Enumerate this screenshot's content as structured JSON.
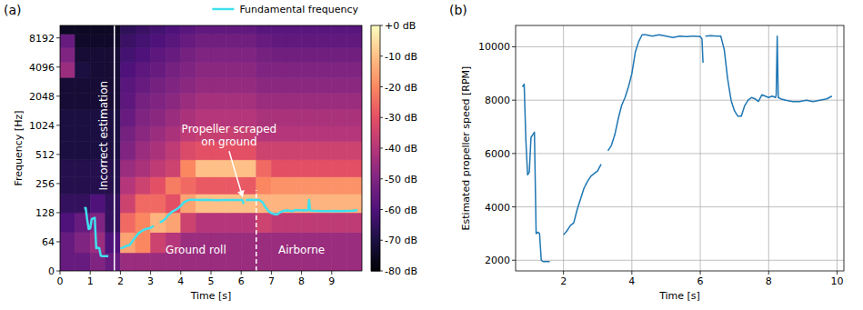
{
  "chart_data": [
    {
      "type": "heatmap",
      "panel_label": "(a)",
      "x_label": "Time [s]",
      "y_label": "Frequency [Hz]",
      "xlim": [
        0,
        10
      ],
      "xticks": [
        0,
        1,
        2,
        3,
        4,
        5,
        6,
        7,
        8,
        9
      ],
      "ylim": [
        0,
        11025
      ],
      "yticks": [
        0,
        64,
        128,
        256,
        512,
        1024,
        2048,
        4096,
        8192
      ],
      "log": "y",
      "grid": false,
      "legend": "top",
      "time_edges": [
        0,
        0.5,
        1,
        1.5,
        2,
        2.5,
        3,
        3.5,
        4,
        4.5,
        5,
        5.5,
        6,
        6.5,
        7,
        7.5,
        8,
        8.5,
        9,
        9.5,
        10
      ],
      "freq_edges": [
        0,
        40,
        80,
        128,
        200,
        300,
        450,
        700,
        1000,
        1500,
        2200,
        3200,
        4600,
        6500,
        9000,
        11025
      ],
      "cells": [
        [
          -55,
          -55,
          -50,
          -55,
          -45,
          -45,
          -45,
          -45,
          -45,
          -45,
          -45,
          -45,
          -45,
          -45,
          -45,
          -45,
          -45,
          -45,
          -45,
          -45
        ],
        [
          -55,
          -50,
          -45,
          -60,
          -15,
          -20,
          -35,
          -40,
          -45,
          -45,
          -45,
          -45,
          -45,
          -45,
          -45,
          -45,
          -45,
          -45,
          -45,
          -45
        ],
        [
          -60,
          -55,
          -50,
          -65,
          -25,
          -20,
          -12,
          -15,
          -35,
          -40,
          -40,
          -40,
          -40,
          -35,
          -38,
          -38,
          -38,
          -38,
          -38,
          -38
        ],
        [
          -65,
          -65,
          -60,
          -65,
          -35,
          -25,
          -25,
          -30,
          -15,
          -10,
          -10,
          -10,
          -10,
          -12,
          -12,
          -12,
          -12,
          -12,
          -12,
          -12
        ],
        [
          -68,
          -68,
          -68,
          -68,
          -40,
          -35,
          -30,
          -22,
          -25,
          -28,
          -28,
          -28,
          -28,
          -20,
          -18,
          -18,
          -18,
          -18,
          -18,
          -18
        ],
        [
          -68,
          -68,
          -68,
          -68,
          -45,
          -42,
          -38,
          -35,
          -20,
          -10,
          -10,
          -10,
          -10,
          -25,
          -30,
          -30,
          -30,
          -30,
          -30,
          -30
        ],
        [
          -70,
          -70,
          -70,
          -70,
          -50,
          -45,
          -42,
          -38,
          -32,
          -30,
          -30,
          -30,
          -30,
          -35,
          -35,
          -35,
          -35,
          -35,
          -35,
          -35
        ],
        [
          -70,
          -70,
          -70,
          -70,
          -52,
          -48,
          -45,
          -42,
          -38,
          -36,
          -36,
          -36,
          -36,
          -40,
          -40,
          -40,
          -40,
          -40,
          -40,
          -40
        ],
        [
          -70,
          -70,
          -70,
          -70,
          -55,
          -50,
          -48,
          -45,
          -42,
          -40,
          -40,
          -40,
          -40,
          -42,
          -42,
          -42,
          -42,
          -42,
          -42,
          -42
        ],
        [
          -72,
          -72,
          -72,
          -72,
          -57,
          -52,
          -50,
          -48,
          -45,
          -43,
          -43,
          -43,
          -43,
          -45,
          -45,
          -45,
          -45,
          -45,
          -45,
          -45
        ],
        [
          -72,
          -72,
          -72,
          -72,
          -58,
          -55,
          -52,
          -50,
          -48,
          -46,
          -46,
          -46,
          -46,
          -48,
          -48,
          -48,
          -48,
          -48,
          -48,
          -48
        ],
        [
          -45,
          -70,
          -72,
          -72,
          -60,
          -57,
          -55,
          -52,
          -50,
          -48,
          -48,
          -48,
          -48,
          -50,
          -50,
          -50,
          -50,
          -50,
          -50,
          -50
        ],
        [
          -50,
          -72,
          -72,
          -72,
          -62,
          -60,
          -57,
          -55,
          -52,
          -50,
          -50,
          -50,
          -50,
          -52,
          -53,
          -53,
          -53,
          -53,
          -53,
          -53
        ],
        [
          -55,
          -74,
          -74,
          -74,
          -64,
          -62,
          -60,
          -58,
          -55,
          -53,
          -53,
          -53,
          -53,
          -55,
          -56,
          -56,
          -56,
          -56,
          -56,
          -56
        ],
        [
          -75,
          -75,
          -75,
          -75,
          -66,
          -64,
          -62,
          -60,
          -58,
          -56,
          -56,
          -56,
          -56,
          -58,
          -58,
          -58,
          -58,
          -58,
          -58,
          -58
        ]
      ],
      "colorbar": {
        "range": [
          -80,
          0
        ],
        "ticks": [
          {
            "value": -80,
            "label": "-80 dB"
          },
          {
            "value": -70,
            "label": "-70 dB"
          },
          {
            "value": -60,
            "label": "-60 dB"
          },
          {
            "value": -50,
            "label": "-50 dB"
          },
          {
            "value": -40,
            "label": "-40 dB"
          },
          {
            "value": -30,
            "label": "-30 dB"
          },
          {
            "value": -20,
            "label": "-20 dB"
          },
          {
            "value": -10,
            "label": "-10 dB"
          },
          {
            "value": 0,
            "label": "+0 dB"
          }
        ]
      },
      "series": [
        {
          "name": "Fundamental frequency",
          "color": "#3fe0ee",
          "type": "line",
          "x": [
            0.8,
            0.85,
            0.9,
            0.95,
            1.0,
            1.05,
            1.1,
            1.15,
            1.2,
            1.25,
            1.3,
            1.35,
            1.4,
            1.5,
            1.6,
            1.8,
            2.0,
            2.1,
            2.2,
            2.3,
            2.4,
            2.5,
            2.6,
            2.7,
            2.8,
            2.9,
            3.0,
            3.1,
            3.2,
            3.3,
            3.4,
            3.5,
            3.6,
            3.7,
            3.8,
            3.9,
            4.0,
            4.1,
            4.2,
            4.3,
            4.4,
            4.6,
            4.8,
            5.0,
            5.2,
            5.4,
            5.6,
            5.8,
            6.0,
            6.05,
            6.08,
            6.1,
            6.15,
            6.3,
            6.5,
            6.6,
            6.7,
            6.8,
            6.9,
            7.0,
            7.1,
            7.2,
            7.3,
            7.4,
            7.5,
            7.6,
            7.7,
            7.8,
            7.9,
            8.0,
            8.1,
            8.2,
            8.22,
            8.25,
            8.28,
            8.35,
            8.5,
            8.7,
            8.9,
            9.1,
            9.3,
            9.5,
            9.7,
            9.85
          ],
          "values": [
            141.7,
            143.3,
            108.3,
            86.7,
            88.3,
            110,
            111.7,
            113.3,
            50,
            50.8,
            50,
            33.3,
            32.5,
            32.5,
            32.5,
            null,
            49.2,
            51.7,
            55,
            56.7,
            65,
            71.7,
            78.3,
            82.5,
            85.8,
            87.5,
            89.2,
            93.3,
            null,
            101.7,
            105,
            111.7,
            121.7,
            130,
            135,
            141.7,
            150,
            163.3,
            170,
            174.2,
            174.2,
            173.3,
            174.2,
            173.3,
            172.5,
            173.3,
            173,
            173.3,
            173,
            171.7,
            156.7,
            null,
            173.3,
            173.7,
            173.3,
            173.3,
            165,
            146.7,
            133.3,
            126.7,
            123.3,
            123.3,
            130,
            133.3,
            135,
            134.2,
            132.5,
            136.7,
            135.8,
            135,
            135.8,
            135,
            136.7,
            173.3,
            135,
            134.2,
            133.3,
            132.5,
            132.5,
            133.3,
            132.5,
            133.3,
            134.2,
            135.8
          ]
        }
      ],
      "vlines": [
        {
          "x": 1.8,
          "color": "#ffffff",
          "line_style": "solid"
        },
        {
          "x": 6.5,
          "y_to": 220,
          "color": "#ffffff",
          "line_style": "dashed"
        }
      ],
      "annotations": [
        {
          "text": "Incorrect estimation",
          "x": 1.45,
          "y": 800
        },
        {
          "text": "Propeller scraped on ground",
          "x": 5.6,
          "y": 800,
          "xy": [
            6.05,
            185
          ]
        },
        {
          "text": "Ground roll",
          "x": 4.5,
          "y": 45
        },
        {
          "text": "Airborne",
          "x": 8.0,
          "y": 45
        }
      ]
    },
    {
      "type": "line",
      "panel_label": "(b)",
      "x_label": "Time [s]",
      "y_label": "Estimated propeller speed [RPM]",
      "xlim": [
        0.6,
        10.2
      ],
      "xticks": [
        2,
        4,
        6,
        8,
        10
      ],
      "ylim": [
        1600,
        10800
      ],
      "yticks": [
        2000,
        4000,
        6000,
        8000,
        10000
      ],
      "grid": true,
      "series": [
        {
          "color": "#1f77b4",
          "x": [
            0.8,
            0.85,
            0.9,
            0.95,
            1.0,
            1.05,
            1.1,
            1.15,
            1.2,
            1.25,
            1.3,
            1.35,
            1.4,
            1.5,
            1.6,
            1.8,
            2.0,
            2.1,
            2.2,
            2.3,
            2.4,
            2.5,
            2.6,
            2.7,
            2.8,
            2.9,
            3.0,
            3.1,
            3.2,
            3.3,
            3.4,
            3.5,
            3.6,
            3.7,
            3.8,
            3.9,
            4.0,
            4.1,
            4.2,
            4.3,
            4.4,
            4.6,
            4.8,
            5.0,
            5.2,
            5.4,
            5.6,
            5.8,
            6.0,
            6.05,
            6.08,
            6.1,
            6.15,
            6.3,
            6.5,
            6.6,
            6.7,
            6.8,
            6.9,
            7.0,
            7.1,
            7.2,
            7.3,
            7.4,
            7.5,
            7.6,
            7.7,
            7.8,
            7.9,
            8.0,
            8.1,
            8.2,
            8.22,
            8.25,
            8.28,
            8.35,
            8.5,
            8.7,
            8.9,
            9.1,
            9.3,
            9.5,
            9.7,
            9.85
          ],
          "values": [
            8500,
            8600,
            6500,
            5200,
            5300,
            6600,
            6700,
            6800,
            3000,
            3050,
            3000,
            2000,
            1950,
            1950,
            1950,
            null,
            2950,
            3100,
            3300,
            3400,
            3900,
            4300,
            4700,
            4950,
            5150,
            5250,
            5350,
            5600,
            null,
            6100,
            6300,
            6700,
            7300,
            7800,
            8100,
            8500,
            9000,
            9800,
            10200,
            10450,
            10450,
            10400,
            10450,
            10400,
            10350,
            10400,
            10380,
            10400,
            10380,
            10300,
            9400,
            null,
            10400,
            10420,
            10400,
            10400,
            9900,
            8800,
            8000,
            7600,
            7400,
            7400,
            7800,
            8000,
            8100,
            8050,
            7950,
            8200,
            8150,
            8100,
            8150,
            8100,
            8200,
            10400,
            8100,
            8050,
            8000,
            7950,
            7950,
            8000,
            7950,
            8000,
            8050,
            8150
          ]
        }
      ]
    }
  ]
}
